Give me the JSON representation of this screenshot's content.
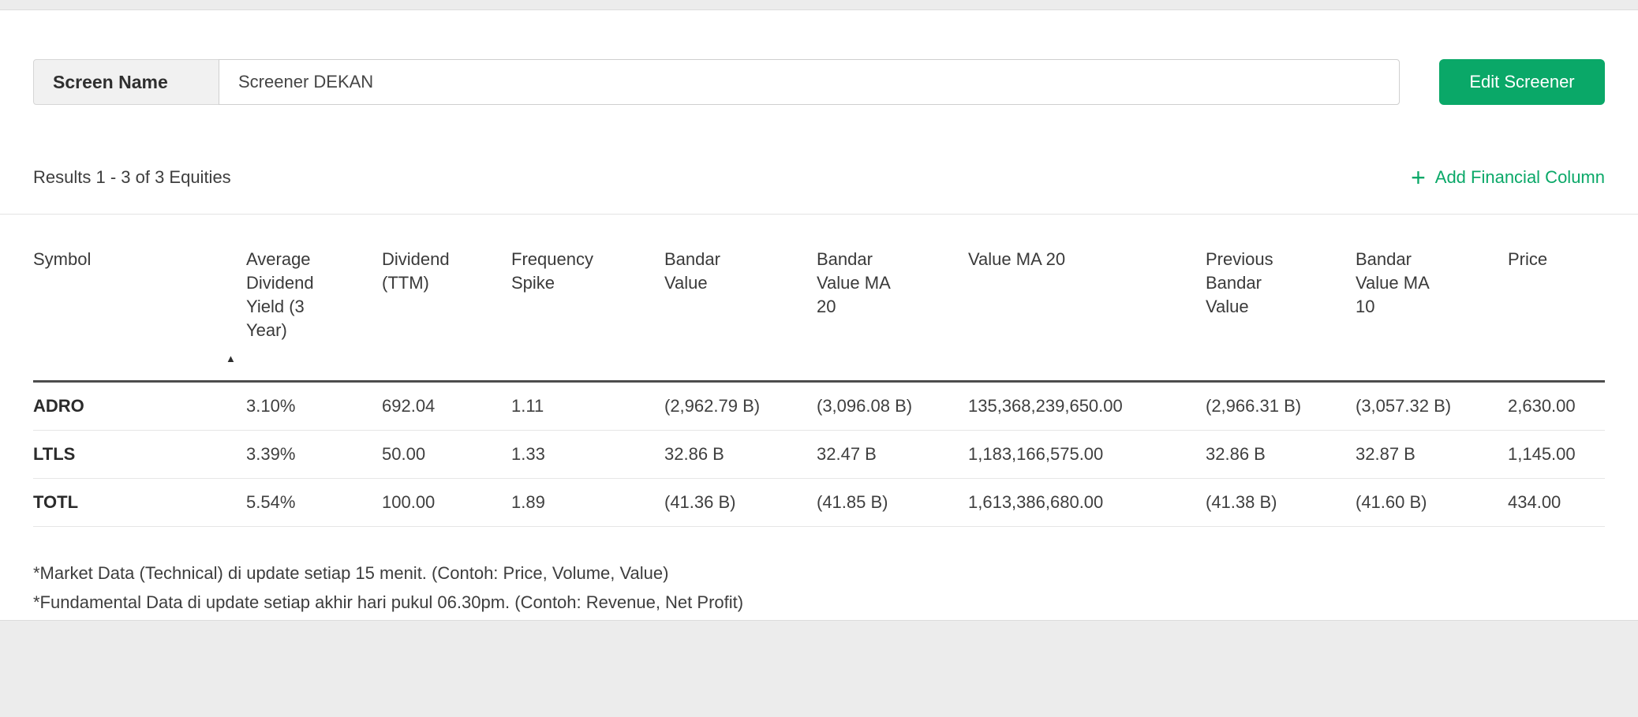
{
  "screen": {
    "label": "Screen Name",
    "name_value": "Screener DEKAN",
    "edit_button": "Edit Screener"
  },
  "results": {
    "summary": "Results 1 - 3 of 3 Equities",
    "add_column_label": "Add Financial Column"
  },
  "icons": {
    "plus": "+",
    "sort_asc": "▲"
  },
  "table": {
    "columns": [
      "Symbol",
      "Average Dividend Yield (3 Year)",
      "Dividend (TTM)",
      "Frequency Spike",
      "Bandar Value",
      "Bandar Value MA 20",
      "Value MA 20",
      "Previous Bandar Value",
      "Bandar Value MA 10",
      "Price"
    ],
    "sorted_column_index": 1,
    "sort_direction": "asc",
    "rows": [
      [
        "ADRO",
        "3.10%",
        "692.04",
        "1.11",
        "(2,962.79 B)",
        "(3,096.08 B)",
        "135,368,239,650.00",
        "(2,966.31 B)",
        "(3,057.32 B)",
        "2,630.00"
      ],
      [
        "LTLS",
        "3.39%",
        "50.00",
        "1.33",
        "32.86 B",
        "32.47 B",
        "1,183,166,575.00",
        "32.86 B",
        "32.87 B",
        "1,145.00"
      ],
      [
        "TOTL",
        "5.54%",
        "100.00",
        "1.89",
        "(41.36 B)",
        "(41.85 B)",
        "1,613,386,680.00",
        "(41.38 B)",
        "(41.60 B)",
        "434.00"
      ]
    ]
  },
  "footnotes": [
    "*Market Data (Technical) di update setiap 15 menit. (Contoh: Price, Volume, Value)",
    "*Fundamental Data di update setiap akhir hari pukul 06.30pm. (Contoh: Revenue, Net Profit)"
  ],
  "colors": {
    "accent_green": "#0aa868",
    "text_dark": "#3a3a3a"
  }
}
